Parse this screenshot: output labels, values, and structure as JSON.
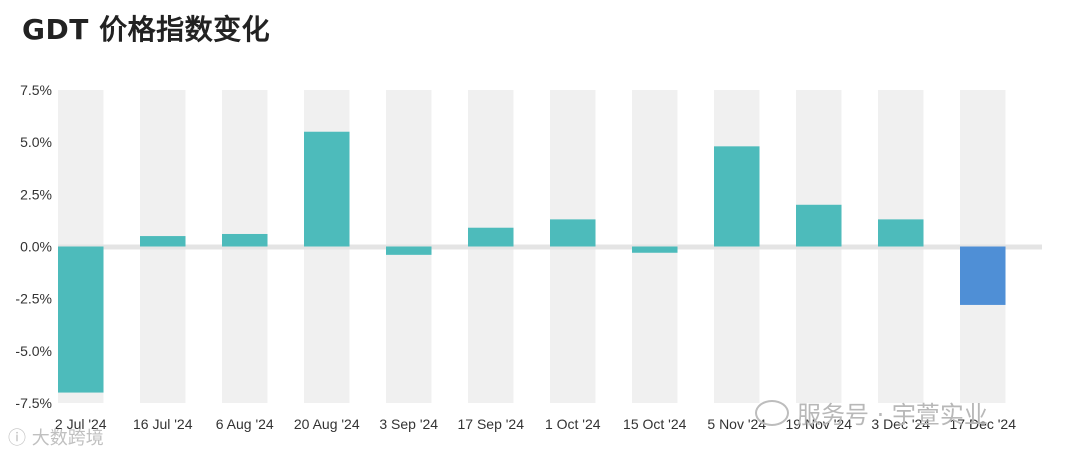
{
  "title": "GDT 价格指数变化",
  "watermarks": {
    "wechat": "服务号 · 宇萱实业",
    "source": "ⓘ 大数跨境"
  },
  "colors": {
    "positive": "#4dbbbb",
    "latest": "#4f8fd6",
    "band": "#f0f0f0",
    "zero_line": "#e4e4e4"
  },
  "chart_data": {
    "type": "bar",
    "title": "GDT 价格指数变化",
    "categories": [
      "2 Jul '24",
      "16 Jul '24",
      "6 Aug '24",
      "20 Aug '24",
      "3 Sep '24",
      "17 Sep '24",
      "1 Oct '24",
      "15 Oct '24",
      "5 Nov '24",
      "19 Nov '24",
      "3 Dec '24",
      "17 Dec '24"
    ],
    "values": [
      -7.0,
      0.5,
      0.6,
      5.5,
      -0.4,
      0.9,
      1.3,
      -0.3,
      4.8,
      2.0,
      1.3,
      -2.8
    ],
    "yticks": [
      "7.5%",
      "5.0%",
      "2.5%",
      "0.0%",
      "-2.5%",
      "-5.0%",
      "-7.5%"
    ],
    "ylim": [
      -7.5,
      7.5
    ],
    "unit": "%",
    "xlabel": "",
    "ylabel": ""
  }
}
